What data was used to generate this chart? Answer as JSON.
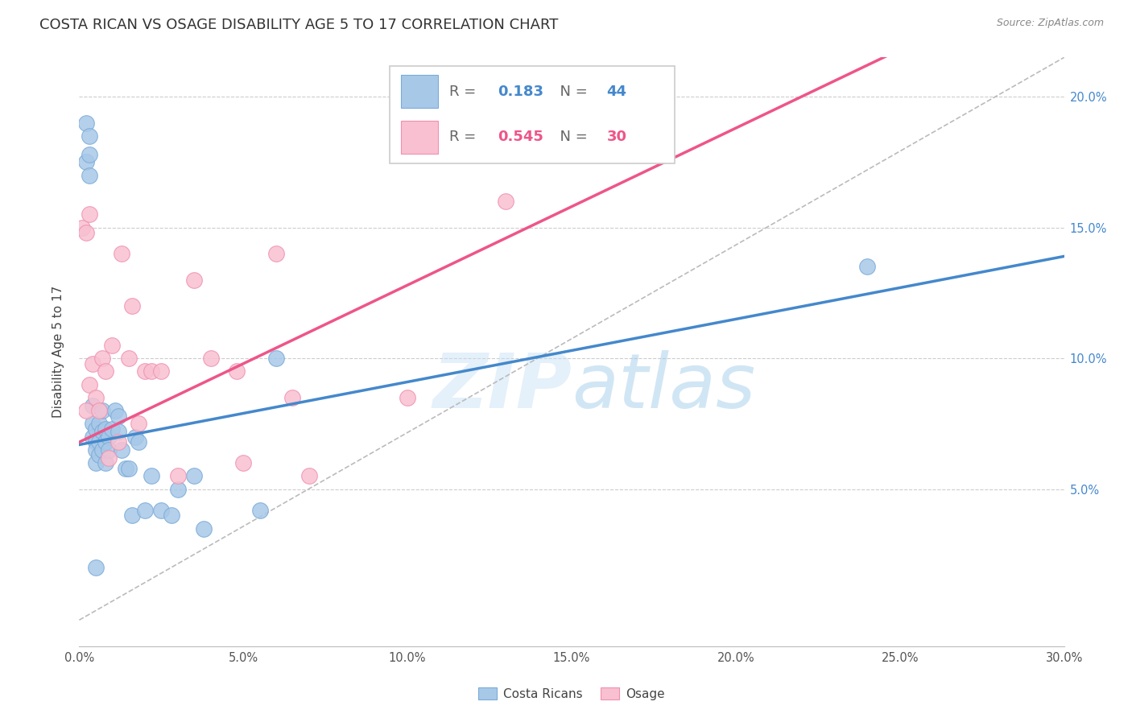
{
  "title": "COSTA RICAN VS OSAGE DISABILITY AGE 5 TO 17 CORRELATION CHART",
  "source": "Source: ZipAtlas.com",
  "xlabel_ticks": [
    "0.0%",
    "5.0%",
    "10.0%",
    "15.0%",
    "20.0%",
    "25.0%",
    "30.0%"
  ],
  "ylabel_ticks": [
    "5.0%",
    "10.0%",
    "15.0%",
    "20.0%"
  ],
  "ylabel": "Disability Age 5 to 17",
  "xlim": [
    0.0,
    0.3
  ],
  "ylim": [
    -0.01,
    0.215
  ],
  "blue_R": 0.183,
  "blue_N": 44,
  "pink_R": 0.545,
  "pink_N": 30,
  "blue_color": "#a8c8e8",
  "pink_color": "#f8c0d0",
  "blue_edge_color": "#7aaBd8",
  "pink_edge_color": "#f090b0",
  "blue_line_color": "#4488cc",
  "pink_line_color": "#ee5588",
  "watermark": "ZIPatlas",
  "blue_x": [
    0.002,
    0.002,
    0.003,
    0.003,
    0.003,
    0.004,
    0.004,
    0.004,
    0.005,
    0.005,
    0.005,
    0.005,
    0.006,
    0.006,
    0.006,
    0.007,
    0.007,
    0.007,
    0.008,
    0.008,
    0.008,
    0.009,
    0.009,
    0.01,
    0.011,
    0.012,
    0.012,
    0.013,
    0.014,
    0.015,
    0.016,
    0.017,
    0.018,
    0.02,
    0.022,
    0.025,
    0.028,
    0.03,
    0.035,
    0.038,
    0.055,
    0.06,
    0.24,
    0.005
  ],
  "blue_y": [
    0.19,
    0.175,
    0.185,
    0.178,
    0.17,
    0.082,
    0.075,
    0.07,
    0.073,
    0.068,
    0.065,
    0.06,
    0.075,
    0.068,
    0.063,
    0.08,
    0.072,
    0.065,
    0.073,
    0.068,
    0.06,
    0.07,
    0.065,
    0.073,
    0.08,
    0.078,
    0.072,
    0.065,
    0.058,
    0.058,
    0.04,
    0.07,
    0.068,
    0.042,
    0.055,
    0.042,
    0.04,
    0.05,
    0.055,
    0.035,
    0.042,
    0.1,
    0.135,
    0.02
  ],
  "pink_x": [
    0.001,
    0.002,
    0.002,
    0.003,
    0.004,
    0.005,
    0.006,
    0.007,
    0.008,
    0.01,
    0.012,
    0.013,
    0.015,
    0.016,
    0.02,
    0.022,
    0.025,
    0.03,
    0.035,
    0.04,
    0.048,
    0.06,
    0.065,
    0.07,
    0.1,
    0.13,
    0.003,
    0.009,
    0.018,
    0.05
  ],
  "pink_y": [
    0.15,
    0.148,
    0.08,
    0.09,
    0.098,
    0.085,
    0.08,
    0.1,
    0.095,
    0.105,
    0.068,
    0.14,
    0.1,
    0.12,
    0.095,
    0.095,
    0.095,
    0.055,
    0.13,
    0.1,
    0.095,
    0.14,
    0.085,
    0.055,
    0.085,
    0.16,
    0.155,
    0.062,
    0.075,
    0.06
  ],
  "grid_color": "#cccccc",
  "background_color": "#ffffff",
  "title_fontsize": 13,
  "axis_label_fontsize": 11,
  "tick_fontsize": 10.5,
  "legend_fontsize": 13,
  "blue_intercept": 0.067,
  "blue_slope": 0.24,
  "pink_intercept": 0.068,
  "pink_slope": 0.6
}
